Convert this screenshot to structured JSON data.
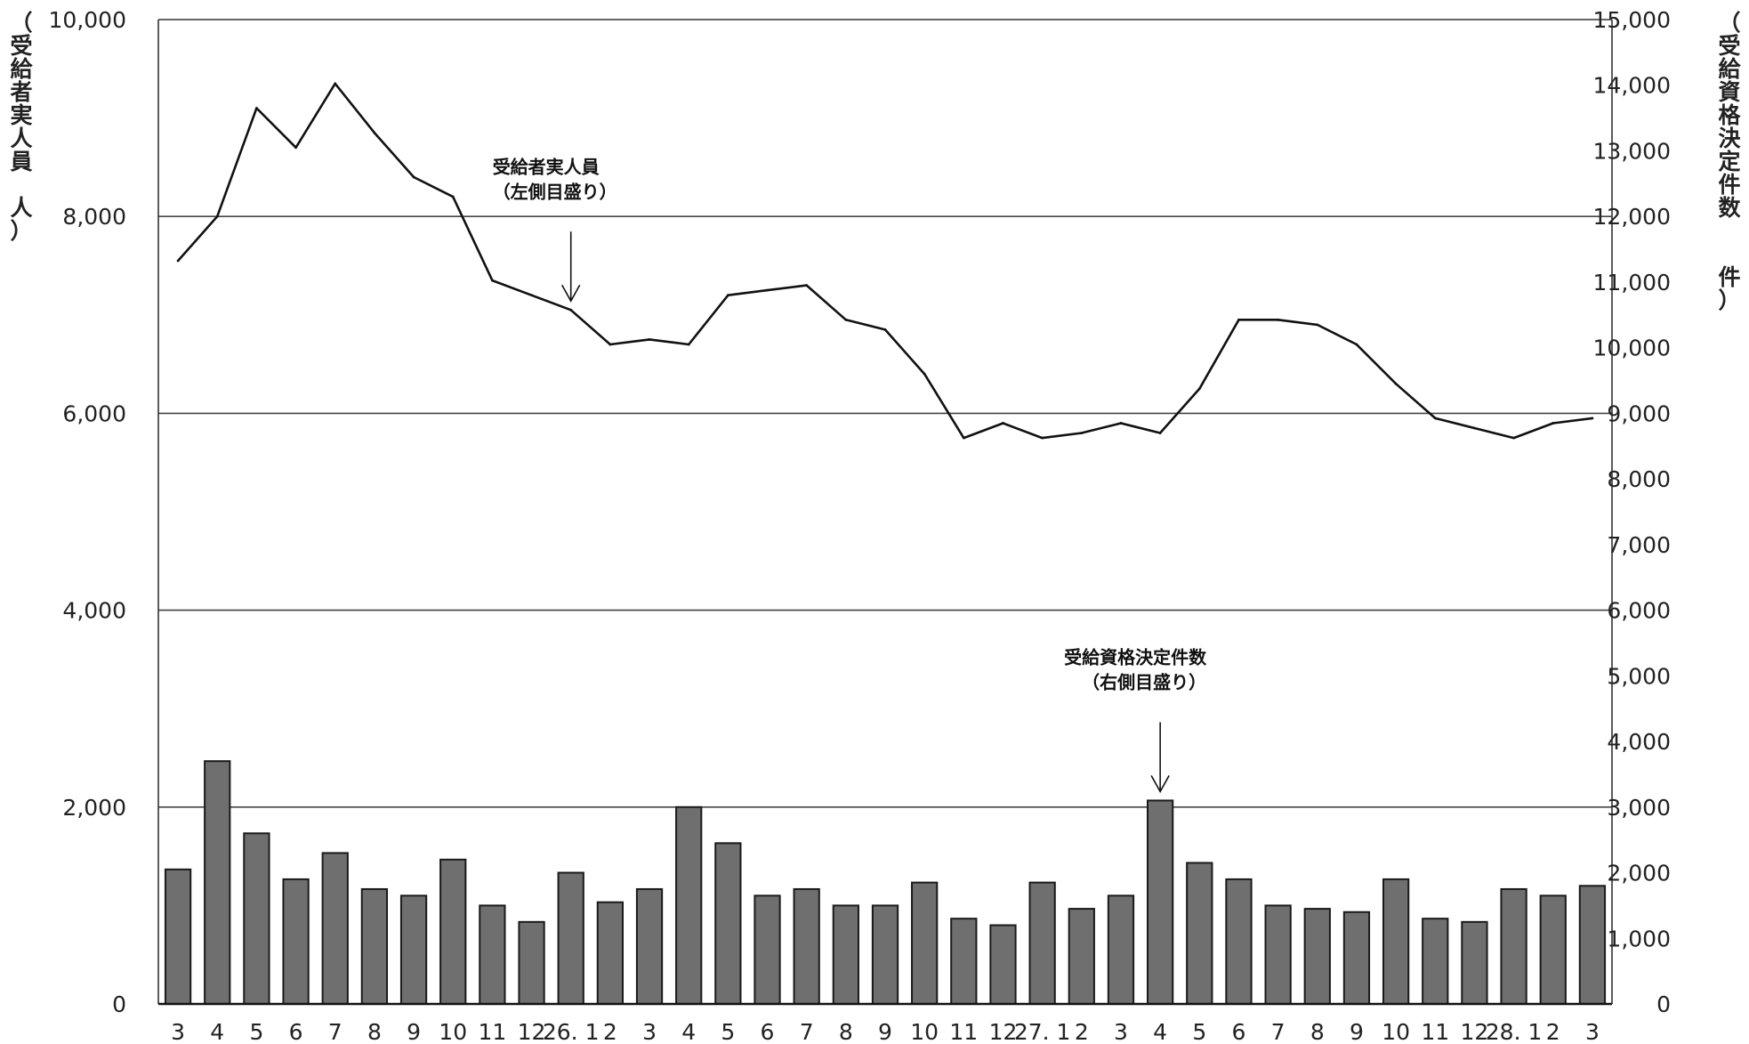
{
  "chart_data": {
    "type": "bar+line",
    "categories": [
      "3",
      "4",
      "5",
      "6",
      "7",
      "8",
      "9",
      "10",
      "11",
      "12",
      "26. 1",
      "2",
      "3",
      "4",
      "5",
      "6",
      "7",
      "8",
      "9",
      "10",
      "11",
      "12",
      "27. 1",
      "2",
      "3",
      "4",
      "5",
      "6",
      "7",
      "8",
      "9",
      "10",
      "11",
      "12",
      "28. 1",
      "2",
      "3"
    ],
    "y_left": {
      "label": "（受給者実人員　人）",
      "label_chars": [
        "（",
        "受",
        "給",
        "者",
        "実",
        "人",
        "員",
        "",
        "人",
        "）"
      ],
      "ylim": [
        0,
        10000
      ],
      "ticks": [
        "0",
        "2,000",
        "4,000",
        "6,000",
        "8,000",
        "10,000"
      ],
      "tick_values": [
        0,
        2000,
        4000,
        6000,
        8000,
        10000
      ]
    },
    "y_right": {
      "label": "（受給資格決定件数　件）",
      "label_chars": [
        "（",
        "受",
        "給",
        "資",
        "格",
        "決",
        "定",
        "件",
        "数",
        "",
        "件",
        "）"
      ],
      "ylim": [
        0,
        15000
      ],
      "ticks": [
        "0",
        "1,000",
        "2,000",
        "3,000",
        "4,000",
        "5,000",
        "6,000",
        "7,000",
        "8,000",
        "9,000",
        "10,000",
        "11,000",
        "12,000",
        "13,000",
        "14,000",
        "15,000"
      ],
      "tick_values": [
        0,
        1000,
        2000,
        3000,
        4000,
        5000,
        6000,
        7000,
        8000,
        9000,
        10000,
        11000,
        12000,
        13000,
        14000,
        15000
      ]
    },
    "grid": true,
    "series": [
      {
        "name": "受給者実人員",
        "type": "line",
        "axis": "left",
        "values": [
          7550,
          8000,
          9100,
          8700,
          9350,
          8850,
          8400,
          8200,
          7350,
          7200,
          7050,
          6700,
          6750,
          6700,
          7200,
          7250,
          7300,
          6950,
          6850,
          6400,
          5750,
          5900,
          5750,
          5800,
          5900,
          5800,
          6250,
          6950,
          6950,
          6900,
          6700,
          6300,
          5950,
          5850,
          5750,
          5900,
          5950
        ]
      },
      {
        "name": "受給資格決定件数",
        "type": "bar",
        "axis": "right",
        "values": [
          2050,
          3700,
          2600,
          1900,
          2300,
          1750,
          1650,
          2200,
          1500,
          1250,
          2000,
          1550,
          1750,
          3000,
          2450,
          1650,
          1750,
          1500,
          1500,
          1850,
          1300,
          1200,
          1850,
          1450,
          1650,
          3100,
          2150,
          1900,
          1500,
          1450,
          1400,
          1900,
          1300,
          1250,
          1750,
          1650,
          1800
        ]
      }
    ],
    "annotations": [
      {
        "lines": [
          "受給者実人員",
          "（左側目盛り）"
        ],
        "target_series": 0,
        "target_index": 10
      },
      {
        "lines": [
          "受給資格決定件数",
          "（右側目盛り）"
        ],
        "target_series": 1,
        "target_index": 25
      }
    ],
    "colors": {
      "bar_fill": "#6f6f6f",
      "bar_stroke": "#1a1a1a",
      "line": "#111111",
      "grid": "#444444"
    }
  }
}
